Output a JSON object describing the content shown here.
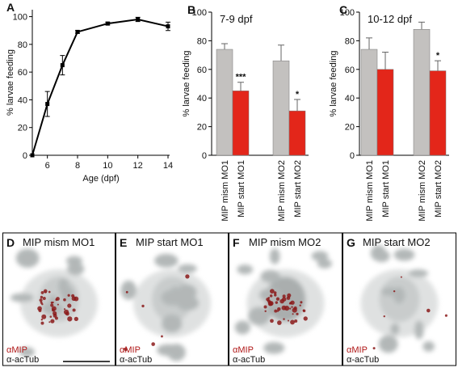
{
  "chart_data": [
    {
      "type": "line",
      "panel_label": "A",
      "x": [
        5,
        6,
        7,
        8,
        10,
        12,
        14
      ],
      "values": [
        0,
        37,
        65,
        89,
        95,
        98,
        93
      ],
      "errors": [
        null,
        9,
        7,
        1,
        1,
        1.5,
        3
      ],
      "color": "#000000",
      "xlabel": "Age (dpf)",
      "ylabel": "% larvae feeding",
      "xlim": [
        5,
        14
      ],
      "xticks": [
        6,
        8,
        10,
        12,
        14
      ],
      "ylim": [
        0,
        105
      ],
      "yticks": [
        0,
        20,
        40,
        60,
        80,
        100
      ]
    },
    {
      "type": "bar",
      "panel_label": "B",
      "title": "7-9 dpf",
      "categories": [
        "MIP mism MO1",
        "MIP start MO1",
        "MIP mism MO2",
        "MIP start MO2"
      ],
      "values": [
        74,
        45,
        66,
        31
      ],
      "errors": [
        4,
        6,
        11,
        8
      ],
      "colors": [
        "#c3c1bf",
        "#e3261a",
        "#c3c1bf",
        "#e3261a"
      ],
      "annotations": [
        null,
        "***",
        null,
        "*"
      ],
      "ylabel": "% larvae feeding",
      "ylim": [
        0,
        100
      ],
      "yticks": [
        0,
        20,
        40,
        60,
        80,
        100
      ]
    },
    {
      "type": "bar",
      "panel_label": "C",
      "title": "10-12 dpf",
      "categories": [
        "MIP mism MO1",
        "MIP start MO1",
        "MIP mism MO2",
        "MIP start MO2"
      ],
      "values": [
        74,
        60,
        88,
        59
      ],
      "errors": [
        8,
        12,
        5,
        7
      ],
      "colors": [
        "#c3c1bf",
        "#e3261a",
        "#c3c1bf",
        "#e3261a"
      ],
      "annotations": [
        null,
        null,
        null,
        "*"
      ],
      "ylabel": "% larvae feeding",
      "ylim": [
        0,
        100
      ],
      "yticks": [
        0,
        20,
        40,
        60,
        80,
        100
      ]
    }
  ],
  "images": [
    {
      "panel_label": "D",
      "title": "MIP mism MO1",
      "stain1": "αMIP",
      "stain2": "α-acTub"
    },
    {
      "panel_label": "E",
      "title": "MIP start MO1",
      "stain1": "αMIP",
      "stain2": "α-acTub"
    },
    {
      "panel_label": "F",
      "title": "MIP mism MO2",
      "stain1": "αMIP",
      "stain2": "α-acTub"
    },
    {
      "panel_label": "G",
      "title": "MIP start MO2",
      "stain1": "αMIP",
      "stain2": "α-acTub"
    }
  ]
}
